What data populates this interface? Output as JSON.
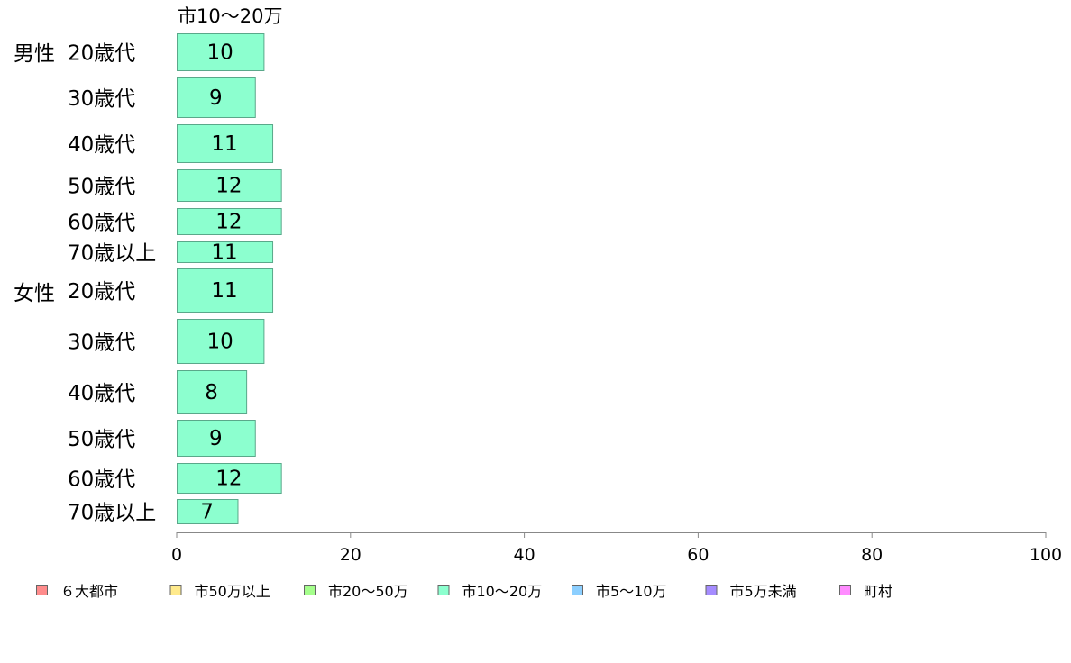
{
  "chart_data": {
    "type": "bar",
    "orientation": "horizontal",
    "series_label": "市10〜20万",
    "groups": [
      {
        "label": "男性",
        "categories": [
          "20歳代",
          "30歳代",
          "40歳代",
          "50歳代",
          "60歳代",
          "70歳以上"
        ],
        "values": [
          10,
          9,
          11,
          12,
          12,
          11
        ]
      },
      {
        "label": "女性",
        "categories": [
          "20歳代",
          "30歳代",
          "40歳代",
          "50歳代",
          "60歳代",
          "70歳以上"
        ],
        "values": [
          11,
          10,
          8,
          9,
          12,
          7
        ]
      }
    ],
    "bar_color": "#8cffcf",
    "xlim": [
      0,
      100
    ],
    "xticks": [
      0,
      20,
      40,
      60,
      80,
      100
    ],
    "grid": false,
    "legend_position": "bottom",
    "legend": [
      {
        "label": "６大都市",
        "color": "#ff8c8c"
      },
      {
        "label": "市50万以上",
        "color": "#ffea8c"
      },
      {
        "label": "市20〜50万",
        "color": "#a5ff8c"
      },
      {
        "label": "市10〜20万",
        "color": "#8cffcf"
      },
      {
        "label": "市5〜10万",
        "color": "#8ccfff"
      },
      {
        "label": "市5万未満",
        "color": "#a58cff"
      },
      {
        "label": "町村",
        "color": "#ff8cff"
      }
    ]
  }
}
